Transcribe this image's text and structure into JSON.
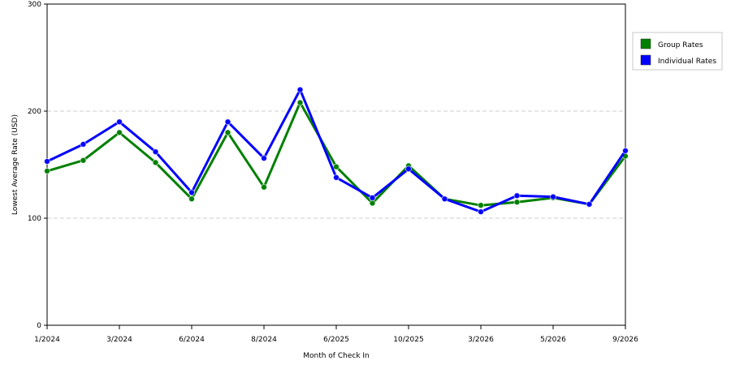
{
  "chart_data": {
    "type": "line",
    "title": "",
    "xlabel": "Month of Check In",
    "ylabel": "Lowest Average Rate (USD)",
    "ylim": [
      0,
      300
    ],
    "yticks": [
      0,
      100,
      200,
      300
    ],
    "grid": "horizontal dashed",
    "legend_position": "right",
    "x_tick_labels": [
      "1/2024",
      "3/2024",
      "6/2024",
      "8/2024",
      "6/2025",
      "10/2025",
      "3/2026",
      "5/2026",
      "9/2026"
    ],
    "x_tick_indices": [
      0,
      2,
      4,
      6,
      8,
      10,
      12,
      14,
      16
    ],
    "point_count": 17,
    "series": [
      {
        "name": "Group Rates",
        "color": "#008000",
        "values": [
          144,
          154,
          180,
          152,
          118,
          180,
          129,
          208,
          148,
          114,
          149,
          118,
          112,
          115,
          119,
          113,
          158
        ]
      },
      {
        "name": "Individual Rates",
        "color": "#0000ff",
        "values": [
          153,
          169,
          190,
          162,
          124,
          190,
          156,
          220,
          138,
          119,
          146,
          118,
          106,
          121,
          120,
          113,
          163
        ]
      }
    ]
  }
}
